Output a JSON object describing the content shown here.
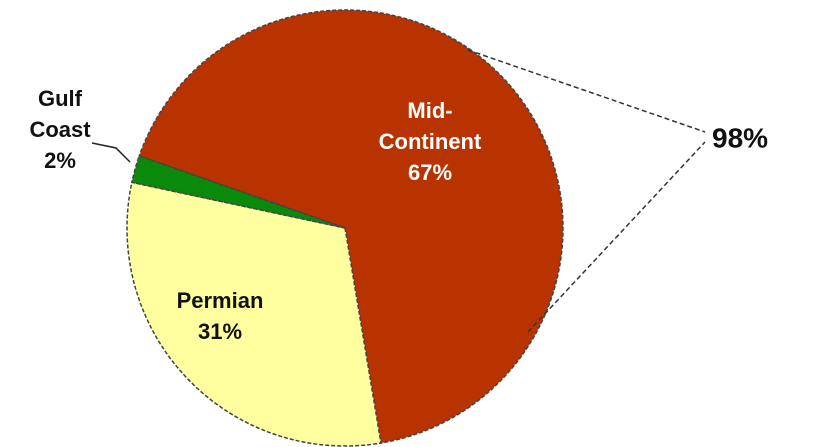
{
  "chart_data": {
    "type": "pie",
    "categories": [
      "Mid-Continent",
      "Permian",
      "Gulf Coast"
    ],
    "values": [
      67,
      31,
      2
    ],
    "value_labels": [
      "67%",
      "31%",
      "2%"
    ],
    "colors": [
      "#b83300",
      "#ffffa0",
      "#0a8a0a"
    ],
    "annotation": "98%"
  }
}
